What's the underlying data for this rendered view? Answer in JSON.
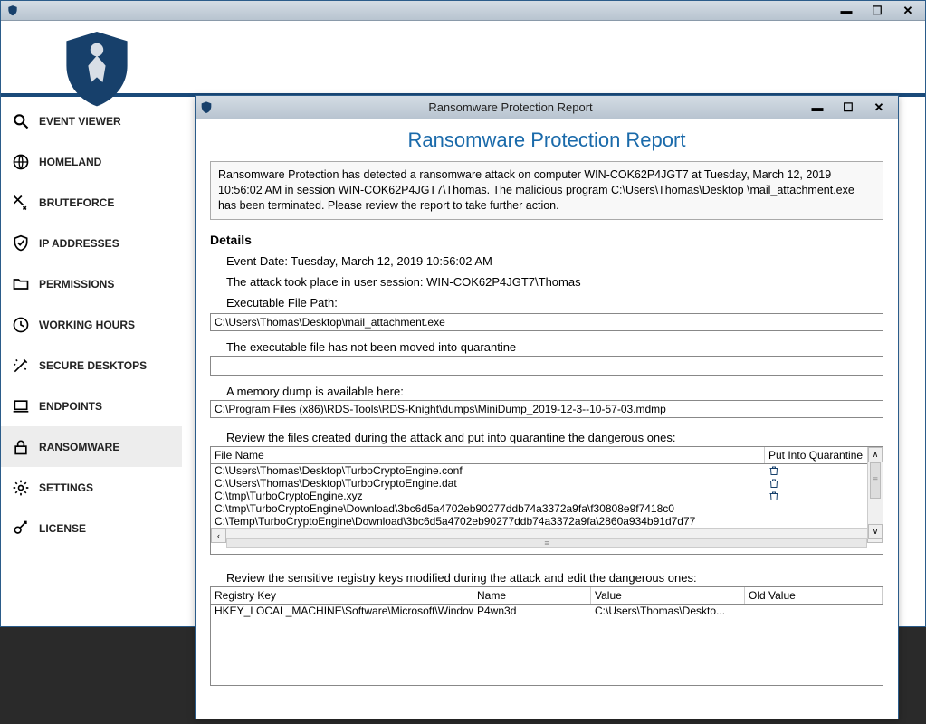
{
  "main": {
    "title": ""
  },
  "sidebar": {
    "items": [
      {
        "label": "EVENT VIEWER",
        "icon": "search"
      },
      {
        "label": "HOMELAND",
        "icon": "globe"
      },
      {
        "label": "BRUTEFORCE",
        "icon": "swords"
      },
      {
        "label": "IP ADDRESSES",
        "icon": "shield-check"
      },
      {
        "label": "PERMISSIONS",
        "icon": "folder"
      },
      {
        "label": "WORKING HOURS",
        "icon": "clock"
      },
      {
        "label": "SECURE DESKTOPS",
        "icon": "wand"
      },
      {
        "label": "ENDPOINTS",
        "icon": "laptop"
      },
      {
        "label": "RANSOMWARE",
        "icon": "lock"
      },
      {
        "label": "SETTINGS",
        "icon": "gear"
      },
      {
        "label": "LICENSE",
        "icon": "key"
      }
    ],
    "selected_index": 8
  },
  "dialog": {
    "title": "Ransomware Protection Report",
    "heading": "Ransomware Protection Report",
    "summary": "Ransomware Protection has detected a ransomware attack on computer WIN-COK62P4JGT7 at Tuesday, March 12, 2019 10:56:02 AM in session WIN-COK62P4JGT7\\Thomas. The malicious program C:\\Users\\Thomas\\Desktop \\mail_attachment.exe has been terminated. Please review the report to take further action.",
    "details_heading": "Details",
    "event_date_label": "Event Date: Tuesday, March 12, 2019 10:56:02 AM",
    "session_label": "The attack took place in user session: WIN-COK62P4JGT7\\Thomas",
    "exe_label": "Executable File Path:",
    "exe_path": "C:\\Users\\Thomas\\Desktop\\mail_attachment.exe",
    "quarantine_label": "The executable file has not been moved into quarantine",
    "quarantine_path": "",
    "dump_label": "A memory dump is available here:",
    "dump_path": "C:\\Program Files (x86)\\RDS-Tools\\RDS-Knight\\dumps\\MiniDump_2019-12-3--10-57-03.mdmp",
    "files_label": "Review the files created during the attack and put into quarantine the dangerous ones:",
    "files_columns": {
      "name": "File Name",
      "action": "Put Into Quarantine"
    },
    "files": [
      {
        "name": "C:\\Users\\Thomas\\Desktop\\TurboCryptoEngine.conf",
        "trash": true
      },
      {
        "name": "C:\\Users\\Thomas\\Desktop\\TurboCryptoEngine.dat",
        "trash": true
      },
      {
        "name": "C:\\tmp\\TurboCryptoEngine.xyz",
        "trash": true
      },
      {
        "name": "C:\\tmp\\TurboCryptoEngine\\Download\\3bc6d5a4702eb90277ddb74a3372a9fa\\f30808e9f7418c0",
        "trash": false
      },
      {
        "name": "C:\\Temp\\TurboCryptoEngine\\Download\\3bc6d5a4702eb90277ddb74a3372a9fa\\2860a934b91d7d77",
        "trash": false
      }
    ],
    "registry_label": "Review the sensitive registry keys modified during the attack and edit the dangerous ones:",
    "registry_columns": {
      "key": "Registry Key",
      "name": "Name",
      "value": "Value",
      "old": "Old Value"
    },
    "registry": [
      {
        "key": "HKEY_LOCAL_MACHINE\\Software\\Microsoft\\Windows\\...",
        "name": "P4wn3d",
        "value": "C:\\Users\\Thomas\\Deskto...",
        "old": ""
      }
    ]
  },
  "colors": {
    "accent": "#1a6aaa",
    "border": "#2b5c8a",
    "shield": "#17406b"
  }
}
